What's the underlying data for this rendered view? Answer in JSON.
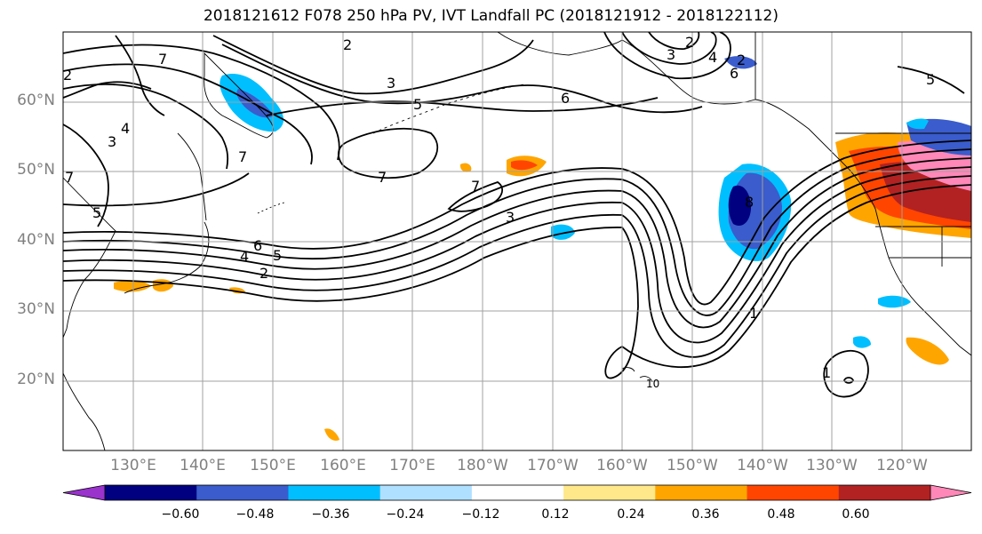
{
  "title": "2018121612 F078 250 hPa PV, IVT Landfall PC (2018121912 - 2018122112)",
  "map": {
    "lat_labels": [
      "60°N",
      "50°N",
      "40°N",
      "30°N",
      "20°N"
    ],
    "lon_labels": [
      "130°E",
      "140°E",
      "150°E",
      "160°E",
      "170°E",
      "180°W",
      "170°W",
      "160°W",
      "150°W",
      "140°W",
      "130°W",
      "120°W"
    ],
    "contour_labels": [
      "7",
      "2",
      "2",
      "3",
      "3",
      "2",
      "4",
      "6",
      "7",
      "5",
      "6",
      "4",
      "3",
      "7",
      "7",
      "7",
      "3",
      "5",
      "6",
      "5",
      "4",
      "2",
      "8",
      "1",
      "1",
      "10",
      "2",
      "5"
    ],
    "colors": {
      "land_outline": "#000000",
      "grid": "#a0a0a0",
      "contour": "#000000"
    }
  },
  "colorbar": {
    "ticks": [
      "−0.60",
      "−0.48",
      "−0.36",
      "−0.24",
      "−0.12",
      "0.12",
      "0.24",
      "0.36",
      "0.48",
      "0.60"
    ],
    "colors": [
      "#9933cc",
      "#000080",
      "#3a5ccc",
      "#00bfff",
      "#b0e0ff",
      "#ffffff",
      "#ffe88a",
      "#ffa500",
      "#ff4500",
      "#b22222",
      "#ff88b8"
    ]
  }
}
